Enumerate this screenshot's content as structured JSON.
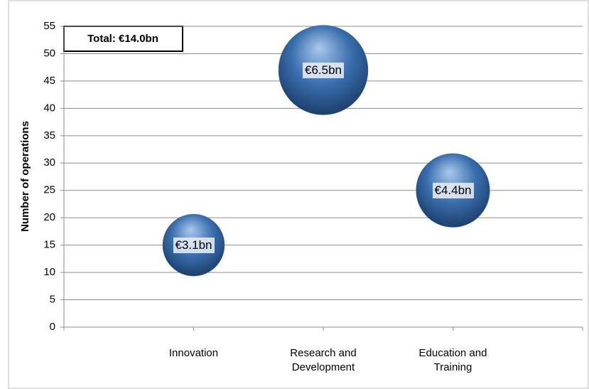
{
  "chart_data": {
    "type": "bubble",
    "annotation": "Total: €14.0bn",
    "y_label": "Number of operations",
    "categories": [
      "Innovation",
      "Research and Development",
      "Education and Training"
    ],
    "series": [
      {
        "color": "#3b6fae",
        "values": [
          15,
          47,
          25
        ],
        "sizes": [
          3.1,
          6.5,
          4.4
        ],
        "value_labels": [
          "€3.1bn",
          "€6.5bn",
          "€4.4bn"
        ]
      }
    ],
    "ylim": [
      0,
      55
    ],
    "yticks": [
      0,
      5,
      10,
      15,
      20,
      25,
      30,
      35,
      40,
      45,
      50,
      55
    ],
    "grid": true
  }
}
